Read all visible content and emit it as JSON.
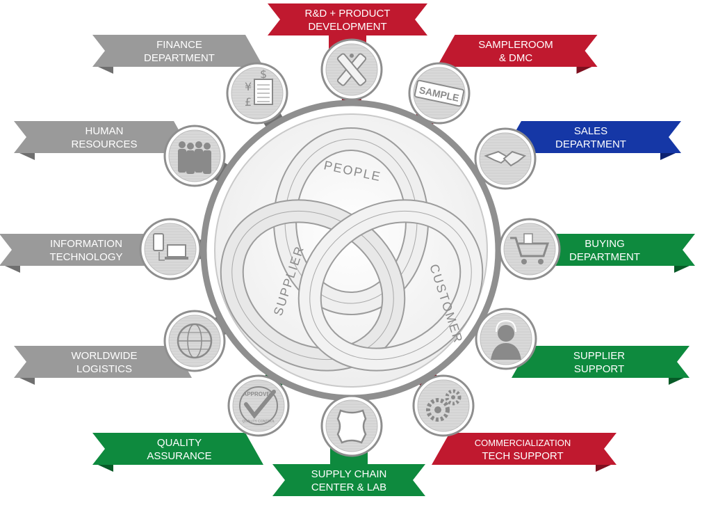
{
  "hub": {
    "labels": {
      "people": "PEOPLE",
      "supplier": "SUPPLIER",
      "customer": "CUSTOMER"
    }
  },
  "colors": {
    "gray": "#9a9a9a",
    "gray_dark": "#6f6f6f",
    "red": "#c0192f",
    "red_dark": "#7e0f1f",
    "blue": "#1537a6",
    "blue_dark": "#0c2170",
    "green": "#0e8a3e",
    "green_dark": "#075a27",
    "medallion": "#d7d7d7",
    "medallion_rim": "#8e8e8e",
    "icon": "#8a8a8a"
  },
  "departments": [
    {
      "id": "rd",
      "lines": [
        "R&D + PRODUCT",
        "DEVELOPMENT"
      ],
      "color": "red",
      "icon": "tools-icon"
    },
    {
      "id": "sampleroom",
      "lines": [
        "SAMPLEROOM",
        "& DMC"
      ],
      "color": "red",
      "icon": "sample-stamp-icon",
      "icon_text": "SAMPLE"
    },
    {
      "id": "sales",
      "lines": [
        "SALES",
        "DEPARTMENT"
      ],
      "color": "blue",
      "icon": "handshake-icon"
    },
    {
      "id": "buying",
      "lines": [
        "BUYING",
        "DEPARTMENT"
      ],
      "color": "green",
      "icon": "shopping-cart-icon"
    },
    {
      "id": "supplier-support",
      "lines": [
        "SUPPLIER",
        "SUPPORT"
      ],
      "color": "green",
      "icon": "headset-agent-icon"
    },
    {
      "id": "commercialization",
      "lines": [
        "COMMERCIALIZATION",
        "TECH SUPPORT"
      ],
      "color": "red",
      "icon": "gears-icon"
    },
    {
      "id": "supply-chain",
      "lines": [
        "SUPPLY CHAIN",
        "CENTER & LAB"
      ],
      "color": "green",
      "icon": "leather-hide-icon"
    },
    {
      "id": "quality",
      "lines": [
        "QUALITY",
        "ASSURANCE"
      ],
      "color": "green",
      "icon": "approved-stamp-icon",
      "icon_text": [
        "APPROVED",
        "QUALITY CONTROL"
      ]
    },
    {
      "id": "logistics",
      "lines": [
        "WORLDWIDE",
        "LOGISTICS"
      ],
      "color": "gray",
      "icon": "globe-icon"
    },
    {
      "id": "it",
      "lines": [
        "INFORMATION",
        "TECHNOLOGY"
      ],
      "color": "gray",
      "icon": "devices-icon"
    },
    {
      "id": "hr",
      "lines": [
        "HUMAN",
        "RESOURCES"
      ],
      "color": "gray",
      "icon": "people-icon"
    },
    {
      "id": "finance",
      "lines": [
        "FINANCE",
        "DEPARTMENT"
      ],
      "color": "gray",
      "icon": "currency-document-icon"
    }
  ]
}
